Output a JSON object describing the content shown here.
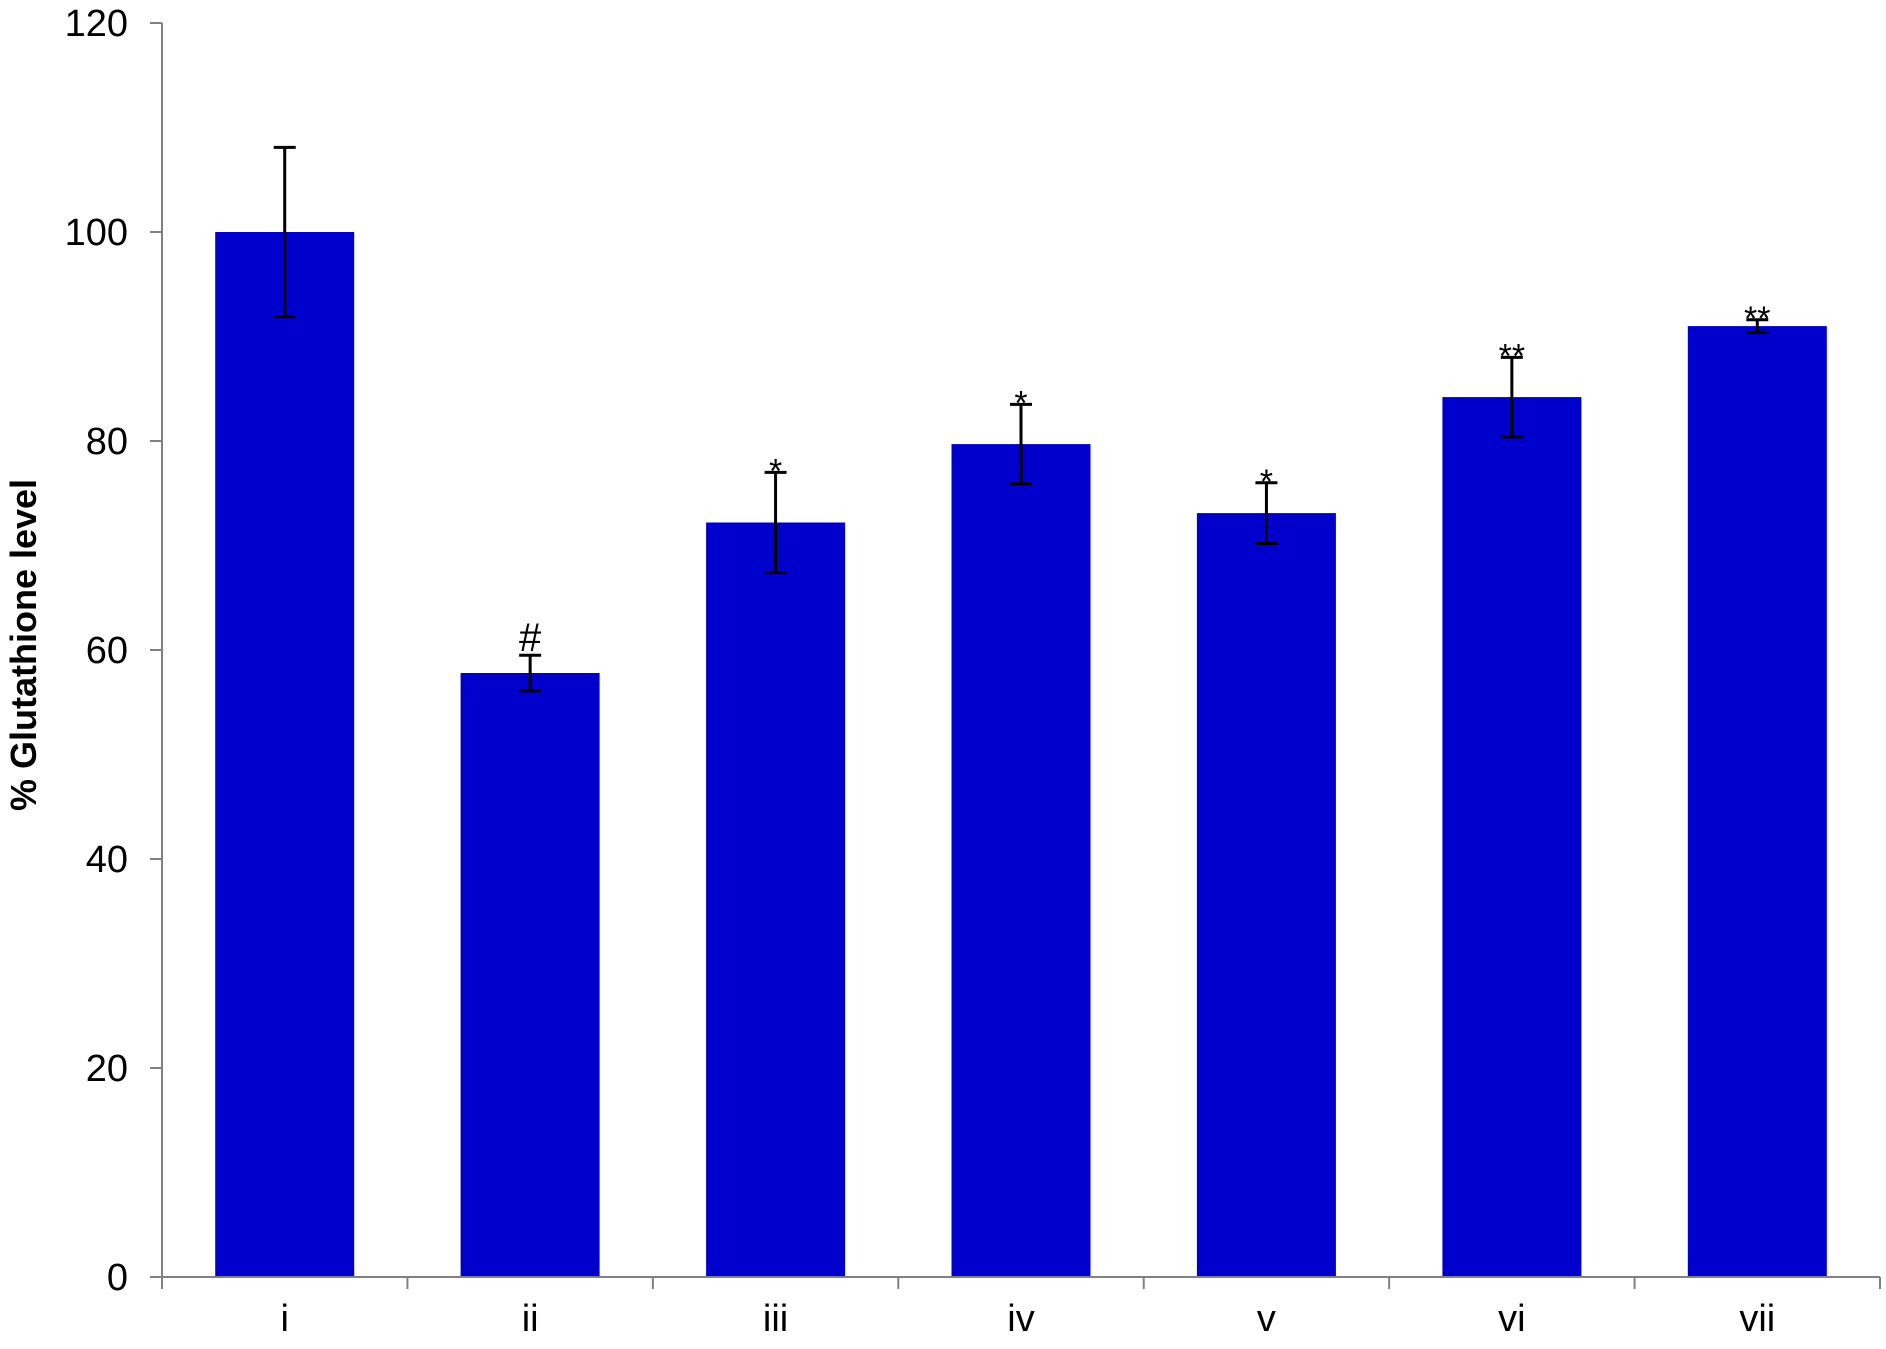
{
  "chart_data": {
    "type": "bar",
    "title": "",
    "xlabel": "",
    "ylabel": "% Glutathione level",
    "categories": [
      "i",
      "ii",
      "iii",
      "iv",
      "v",
      "vi",
      "vii"
    ],
    "values": [
      100,
      57.8,
      72.2,
      79.7,
      73.1,
      84.2,
      91.0
    ],
    "error": [
      8.1,
      1.7,
      4.8,
      3.8,
      2.9,
      3.8,
      0.6
    ],
    "annotations": [
      "",
      "#",
      "*",
      "*",
      "*",
      "**",
      "**"
    ],
    "ylim": [
      0,
      120
    ],
    "yticks": [
      0,
      20,
      40,
      60,
      80,
      100,
      120
    ],
    "grid": false,
    "legend": "none",
    "bar_color": "#0000CC",
    "axis_color": "#808080"
  }
}
